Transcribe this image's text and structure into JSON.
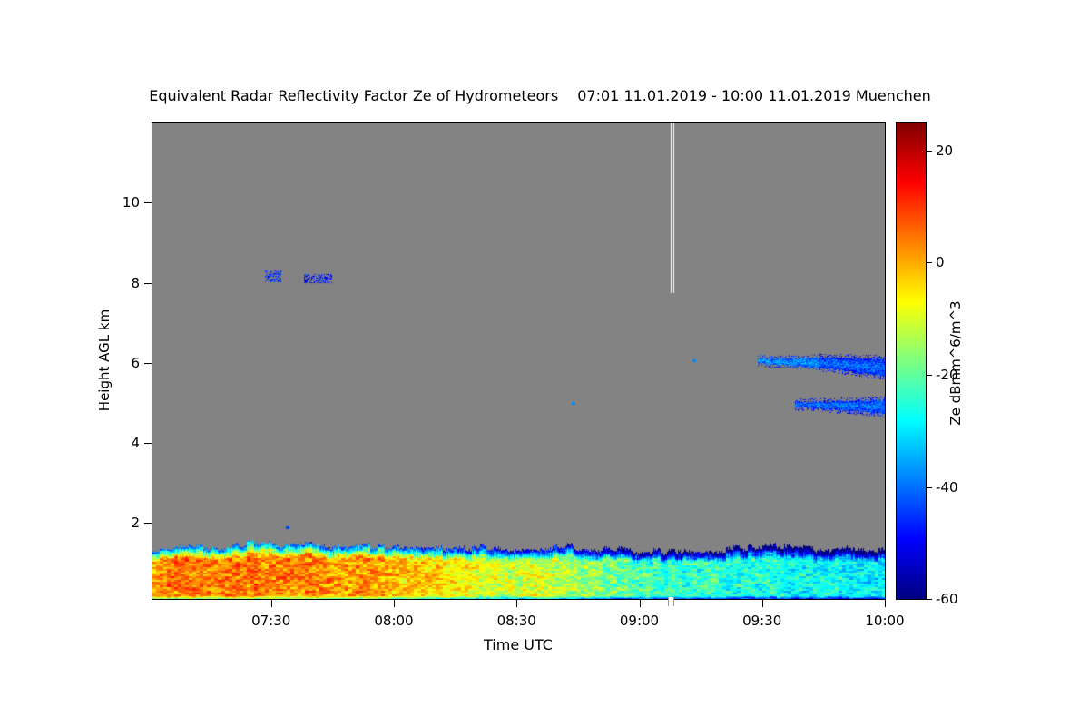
{
  "page": {
    "background": "#ffffff"
  },
  "chart_data": {
    "type": "heatmap",
    "title": "Equivalent Radar Reflectivity Factor Ze of Hydrometeors",
    "period": "07:01 11.01.2019 - 10:00 11.01.2019 Muenchen",
    "xlabel": "Time UTC",
    "ylabel": "Height AGL km",
    "colorbar_label": "Ze dBmm^6/m^3",
    "colormap": "jet",
    "background_color": "#838383",
    "x_start_minutes": 421,
    "x_end_minutes": 600,
    "x_ticks": [
      {
        "minutes": 450,
        "label": "07:30"
      },
      {
        "minutes": 480,
        "label": "08:00"
      },
      {
        "minutes": 510,
        "label": "08:30"
      },
      {
        "minutes": 540,
        "label": "09:00"
      },
      {
        "minutes": 570,
        "label": "09:30"
      },
      {
        "minutes": 600,
        "label": "10:00"
      }
    ],
    "ylim": [
      0.1,
      12.0
    ],
    "y_ticks": [
      2,
      4,
      6,
      8,
      10
    ],
    "value_range": [
      -60,
      25
    ],
    "colorbar_ticks": [
      20,
      0,
      -20,
      -40,
      -60
    ],
    "boundary_layer": {
      "description": "low-level hydrometeor layer from surface, yellow/orange early becoming green/cyan",
      "base_km": 0.1,
      "times": [
        421,
        429,
        437,
        445,
        452,
        459,
        466,
        473,
        480,
        487,
        494,
        501,
        508,
        515,
        522,
        529,
        536,
        543,
        550,
        557,
        564,
        571,
        578,
        585,
        592,
        600
      ],
      "top_km": [
        1.3,
        1.42,
        1.34,
        1.52,
        1.44,
        1.5,
        1.38,
        1.44,
        1.36,
        1.42,
        1.34,
        1.38,
        1.3,
        1.36,
        1.42,
        1.34,
        1.3,
        1.26,
        1.32,
        1.28,
        1.34,
        1.42,
        1.38,
        1.32,
        1.36,
        1.3
      ],
      "peak_dbz": [
        3,
        5,
        2,
        5,
        3,
        4,
        1,
        2,
        -1,
        -3,
        -6,
        -9,
        -12,
        -10,
        -14,
        -17,
        -20,
        -22,
        -24,
        -23,
        -26,
        -25,
        -28,
        -27,
        -29,
        -30
      ]
    },
    "features": [
      {
        "type": "patch",
        "label": "cirrus-fragment-0730",
        "t0": 448.5,
        "t1": 452.5,
        "h0": 8.02,
        "h1": 8.3,
        "value": -46,
        "density": 0.5
      },
      {
        "type": "patch",
        "label": "cirrus-fragment-0742",
        "t0": 458.0,
        "t1": 465.0,
        "h0": 7.98,
        "h1": 8.22,
        "value": -48,
        "density": 0.45
      },
      {
        "type": "dot",
        "label": "speck-0734-1.9km",
        "t": 454.0,
        "h": 1.88,
        "value": -44
      },
      {
        "type": "dot",
        "label": "speck-0844-5km",
        "t": 524.0,
        "h": 5.0,
        "value": -38
      },
      {
        "type": "dot",
        "label": "speck-0913-6km",
        "t": 553.5,
        "h": 6.06,
        "value": -38
      },
      {
        "type": "band",
        "label": "cloud-layer-6km-thin",
        "t0": 569,
        "t1": 584,
        "hc0": 6.04,
        "hc1": 6.0,
        "th0": 0.1,
        "th1": 0.24,
        "value": -36
      },
      {
        "type": "band",
        "label": "cloud-layer-6km-thick",
        "t0": 584,
        "t1": 600,
        "hc0": 6.0,
        "hc1": 5.88,
        "th0": 0.26,
        "th1": 0.42,
        "value": -40
      },
      {
        "type": "band",
        "label": "cloud-layer-5km",
        "t0": 578,
        "t1": 600,
        "hc0": 4.96,
        "hc1": 4.9,
        "th0": 0.1,
        "th1": 0.34,
        "value": -39
      },
      {
        "type": "gapline",
        "label": "data-gap-0908",
        "t": 548,
        "h0": 7.75,
        "h1": 12.0
      }
    ]
  }
}
